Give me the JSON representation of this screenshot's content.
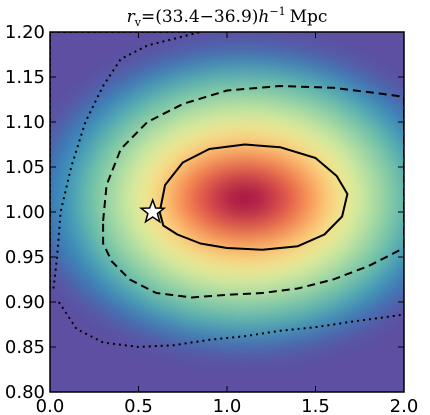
{
  "chart_data": {
    "type": "heatmap",
    "title": "r_v=(33.4−36.9)h^{-1} Mpc",
    "title_parts": {
      "r": "r",
      "sub": "v",
      "range": "=(33.4−36.9)",
      "h": "h",
      "sup": "−1",
      "unit": "Mpc"
    },
    "xlim": [
      0.0,
      2.0
    ],
    "ylim": [
      0.8,
      1.2
    ],
    "x_ticks": [
      0.0,
      0.5,
      1.0,
      1.5,
      2.0
    ],
    "x_tick_labels": [
      "0.0",
      "0.5",
      "1.0",
      "1.5",
      "2.0"
    ],
    "y_ticks": [
      0.8,
      0.85,
      0.9,
      0.95,
      1.0,
      1.05,
      1.1,
      1.15,
      1.2
    ],
    "y_tick_labels": [
      "0.80",
      "0.85",
      "0.90",
      "0.95",
      "1.00",
      "1.05",
      "1.10",
      "1.15",
      "1.20"
    ],
    "colormap": "Spectral_r",
    "peak": {
      "x": 1.05,
      "y": 1.015
    },
    "contours": [
      {
        "level": "inner",
        "style": "solid",
        "points": [
          [
            0.62,
            1.0
          ],
          [
            0.65,
            1.03
          ],
          [
            0.75,
            1.055
          ],
          [
            0.9,
            1.07
          ],
          [
            1.1,
            1.075
          ],
          [
            1.3,
            1.072
          ],
          [
            1.5,
            1.06
          ],
          [
            1.62,
            1.04
          ],
          [
            1.68,
            1.02
          ],
          [
            1.65,
            0.995
          ],
          [
            1.55,
            0.975
          ],
          [
            1.4,
            0.962
          ],
          [
            1.2,
            0.958
          ],
          [
            1.0,
            0.96
          ],
          [
            0.85,
            0.965
          ],
          [
            0.72,
            0.975
          ],
          [
            0.64,
            0.985
          ]
        ]
      },
      {
        "level": "middle",
        "style": "dashed",
        "points": [
          [
            0.3,
            0.99
          ],
          [
            0.32,
            1.03
          ],
          [
            0.4,
            1.07
          ],
          [
            0.55,
            1.1
          ],
          [
            0.75,
            1.12
          ],
          [
            1.0,
            1.135
          ],
          [
            1.3,
            1.14
          ],
          [
            1.6,
            1.138
          ],
          [
            1.85,
            1.132
          ],
          [
            2.0,
            1.128
          ],
          [
            2.0,
            0.96
          ],
          [
            1.8,
            0.94
          ],
          [
            1.6,
            0.925
          ],
          [
            1.4,
            0.915
          ],
          [
            1.2,
            0.91
          ],
          [
            1.0,
            0.908
          ],
          [
            0.8,
            0.905
          ],
          [
            0.6,
            0.91
          ],
          [
            0.45,
            0.925
          ],
          [
            0.35,
            0.945
          ],
          [
            0.3,
            0.965
          ]
        ]
      },
      {
        "level": "outer",
        "style": "dotted",
        "points": [
          [
            0.02,
            0.915
          ],
          [
            0.04,
            0.95
          ],
          [
            0.06,
            1.0
          ],
          [
            0.12,
            1.05
          ],
          [
            0.2,
            1.1
          ],
          [
            0.3,
            1.14
          ],
          [
            0.4,
            1.17
          ],
          [
            0.55,
            1.185
          ],
          [
            0.75,
            1.195
          ],
          [
            0.85,
            1.2
          ],
          [
            0.0,
            1.2
          ],
          [
            0.0,
            0.915
          ]
        ],
        "lower_points": [
          [
            0.05,
            0.9
          ],
          [
            0.15,
            0.87
          ],
          [
            0.3,
            0.855
          ],
          [
            0.5,
            0.85
          ],
          [
            0.7,
            0.852
          ],
          [
            0.9,
            0.858
          ],
          [
            1.1,
            0.862
          ],
          [
            1.3,
            0.868
          ],
          [
            1.5,
            0.872
          ],
          [
            1.7,
            0.878
          ],
          [
            1.85,
            0.882
          ],
          [
            2.0,
            0.886
          ]
        ]
      }
    ],
    "star_marker": {
      "x": 0.58,
      "y": 1.0,
      "shape": "star",
      "fill": "#ffffff",
      "edge": "#000000"
    },
    "colors": {
      "background_low": "#5e4fa2",
      "mid": "#e6f598",
      "high": "#9e0142",
      "contour": "#000000"
    }
  }
}
